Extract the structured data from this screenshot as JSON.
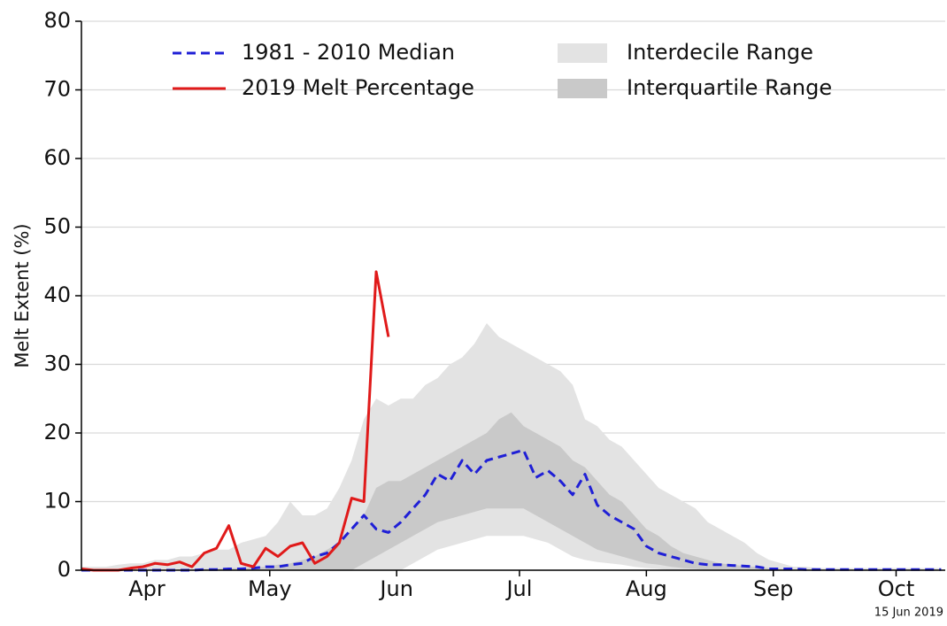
{
  "chart_data": {
    "type": "line",
    "y_label": "Melt Extent (%)",
    "annotation": "15 Jun 2019",
    "x": [
      75,
      78,
      81,
      84,
      87,
      90,
      93,
      96,
      99,
      102,
      105,
      108,
      111,
      114,
      117,
      120,
      123,
      126,
      129,
      132,
      135,
      138,
      141,
      144,
      147,
      150,
      153,
      156,
      159,
      162,
      165,
      168,
      171,
      174,
      177,
      180,
      183,
      186,
      189,
      192,
      195,
      198,
      201,
      204,
      207,
      210,
      213,
      216,
      219,
      222,
      225,
      228,
      231,
      234,
      237,
      240,
      243,
      246,
      249,
      252,
      255,
      258,
      261,
      264,
      267,
      270,
      273,
      276,
      279,
      282,
      285
    ],
    "xlim": [
      75,
      286
    ],
    "xticks": [
      {
        "value": 91,
        "label": "Apr"
      },
      {
        "value": 121,
        "label": "May"
      },
      {
        "value": 152,
        "label": "Jun"
      },
      {
        "value": 182,
        "label": "Jul"
      },
      {
        "value": 213,
        "label": "Aug"
      },
      {
        "value": 244,
        "label": "Sep"
      },
      {
        "value": 274,
        "label": "Oct"
      }
    ],
    "ylim": [
      0,
      80
    ],
    "yticks": [
      0,
      10,
      20,
      30,
      40,
      50,
      60,
      70,
      80
    ],
    "grid": true,
    "series": [
      {
        "name": "1981 - 2010 Median",
        "color": "#1f1fd6",
        "dashed": true,
        "values": [
          0,
          0,
          0,
          0,
          0,
          0,
          0,
          0,
          0,
          0,
          0.1,
          0.1,
          0.2,
          0.2,
          0.3,
          0.5,
          0.5,
          0.8,
          1,
          2,
          2.5,
          4,
          6,
          8,
          6,
          5.5,
          7,
          9,
          11,
          14,
          13,
          16,
          14,
          16,
          16.5,
          17,
          17.5,
          13.5,
          14.5,
          13,
          11,
          14,
          9.5,
          8,
          7,
          6,
          3.5,
          2.5,
          2,
          1.5,
          1,
          0.8,
          0.8,
          0.7,
          0.6,
          0.5,
          0.2,
          0.2,
          0.2,
          0.1,
          0.1,
          0.1,
          0.1,
          0.1,
          0.1,
          0.1,
          0.1,
          0.1,
          0.1,
          0.1,
          0.1
        ]
      },
      {
        "name": "2019 Melt Percentage",
        "color": "#e01a1a",
        "dashed": false,
        "values": [
          0.2,
          0,
          0,
          0,
          0.3,
          0.5,
          1,
          0.8,
          1.2,
          0.5,
          2.5,
          3.2,
          6.5,
          1,
          0.5,
          3.2,
          2,
          3.5,
          4,
          1,
          2,
          4,
          10.5,
          10,
          43.5,
          34,
          null,
          null,
          null,
          null,
          null,
          null,
          null,
          null,
          null,
          null,
          null,
          null,
          null,
          null,
          null,
          null,
          null,
          null,
          null,
          null,
          null,
          null,
          null,
          null,
          null,
          null,
          null,
          null,
          null,
          null,
          null,
          null,
          null,
          null,
          null,
          null,
          null,
          null,
          null,
          null,
          null,
          null,
          null,
          null,
          null
        ]
      },
      {
        "name": "Interdecile Range",
        "color": "#e3e3e3",
        "band": true,
        "high": [
          0.5,
          0.5,
          0.5,
          0.8,
          1,
          1,
          1.5,
          1.5,
          2,
          2,
          2.5,
          3,
          3,
          4,
          4.5,
          5,
          7,
          10,
          8,
          8,
          9,
          12,
          16,
          22,
          25,
          24,
          25,
          25,
          27,
          28,
          30,
          31,
          33,
          36,
          34,
          33,
          32,
          31,
          30,
          29,
          27,
          22,
          21,
          19,
          18,
          16,
          14,
          12,
          11,
          10,
          9,
          7,
          6,
          5,
          4,
          2.5,
          1.5,
          1,
          0.5,
          0.5,
          0.3,
          0.3,
          0.3,
          0.3,
          0.3,
          0.3,
          0.3,
          0.3,
          0.3,
          0.3,
          0.3
        ],
        "low": [
          0,
          0,
          0,
          0,
          0,
          0,
          0,
          0,
          0,
          0,
          0,
          0,
          0,
          0,
          0,
          0,
          0,
          0,
          0,
          0,
          0,
          0,
          0,
          0,
          0,
          0,
          0,
          1,
          2,
          3,
          3.5,
          4,
          4.5,
          5,
          5,
          5,
          5,
          4.5,
          4,
          3,
          2,
          1.5,
          1.2,
          1,
          0.8,
          0.5,
          0.3,
          0.2,
          0,
          0,
          0,
          0,
          0,
          0,
          0,
          0,
          0,
          0,
          0,
          0,
          0,
          0,
          0,
          0,
          0,
          0,
          0,
          0,
          0,
          0,
          0
        ]
      },
      {
        "name": "Interquartile Range",
        "color": "#c9c9c9",
        "band": true,
        "high": [
          0,
          0,
          0,
          0,
          0,
          0,
          0,
          0,
          0.1,
          0.1,
          0.2,
          0.2,
          0.3,
          0.3,
          0.4,
          0.5,
          0.8,
          1,
          1.5,
          2,
          3,
          4,
          6,
          8,
          12,
          13,
          13,
          14,
          15,
          16,
          17,
          18,
          19,
          20,
          22,
          23,
          21,
          20,
          19,
          18,
          16,
          15,
          13,
          11,
          10,
          8,
          6,
          5,
          3.5,
          2.5,
          2,
          1.5,
          1,
          0.8,
          0.6,
          0.5,
          0.3,
          0.2,
          0.1,
          0.1,
          0.1,
          0.1,
          0.1,
          0.1,
          0.1,
          0.1,
          0.1,
          0.1,
          0.1,
          0.1,
          0.1
        ],
        "low": [
          0,
          0,
          0,
          0,
          0,
          0,
          0,
          0,
          0,
          0,
          0,
          0,
          0,
          0,
          0,
          0,
          0,
          0,
          0,
          0,
          0,
          0,
          0,
          1,
          2,
          3,
          4,
          5,
          6,
          7,
          7.5,
          8,
          8.5,
          9,
          9,
          9,
          9,
          8,
          7,
          6,
          5,
          4,
          3,
          2.5,
          2,
          1.5,
          1,
          0.8,
          0.5,
          0.3,
          0.2,
          0,
          0,
          0,
          0,
          0,
          0,
          0,
          0,
          0,
          0,
          0,
          0,
          0,
          0,
          0,
          0,
          0,
          0,
          0,
          0
        ]
      }
    ]
  }
}
